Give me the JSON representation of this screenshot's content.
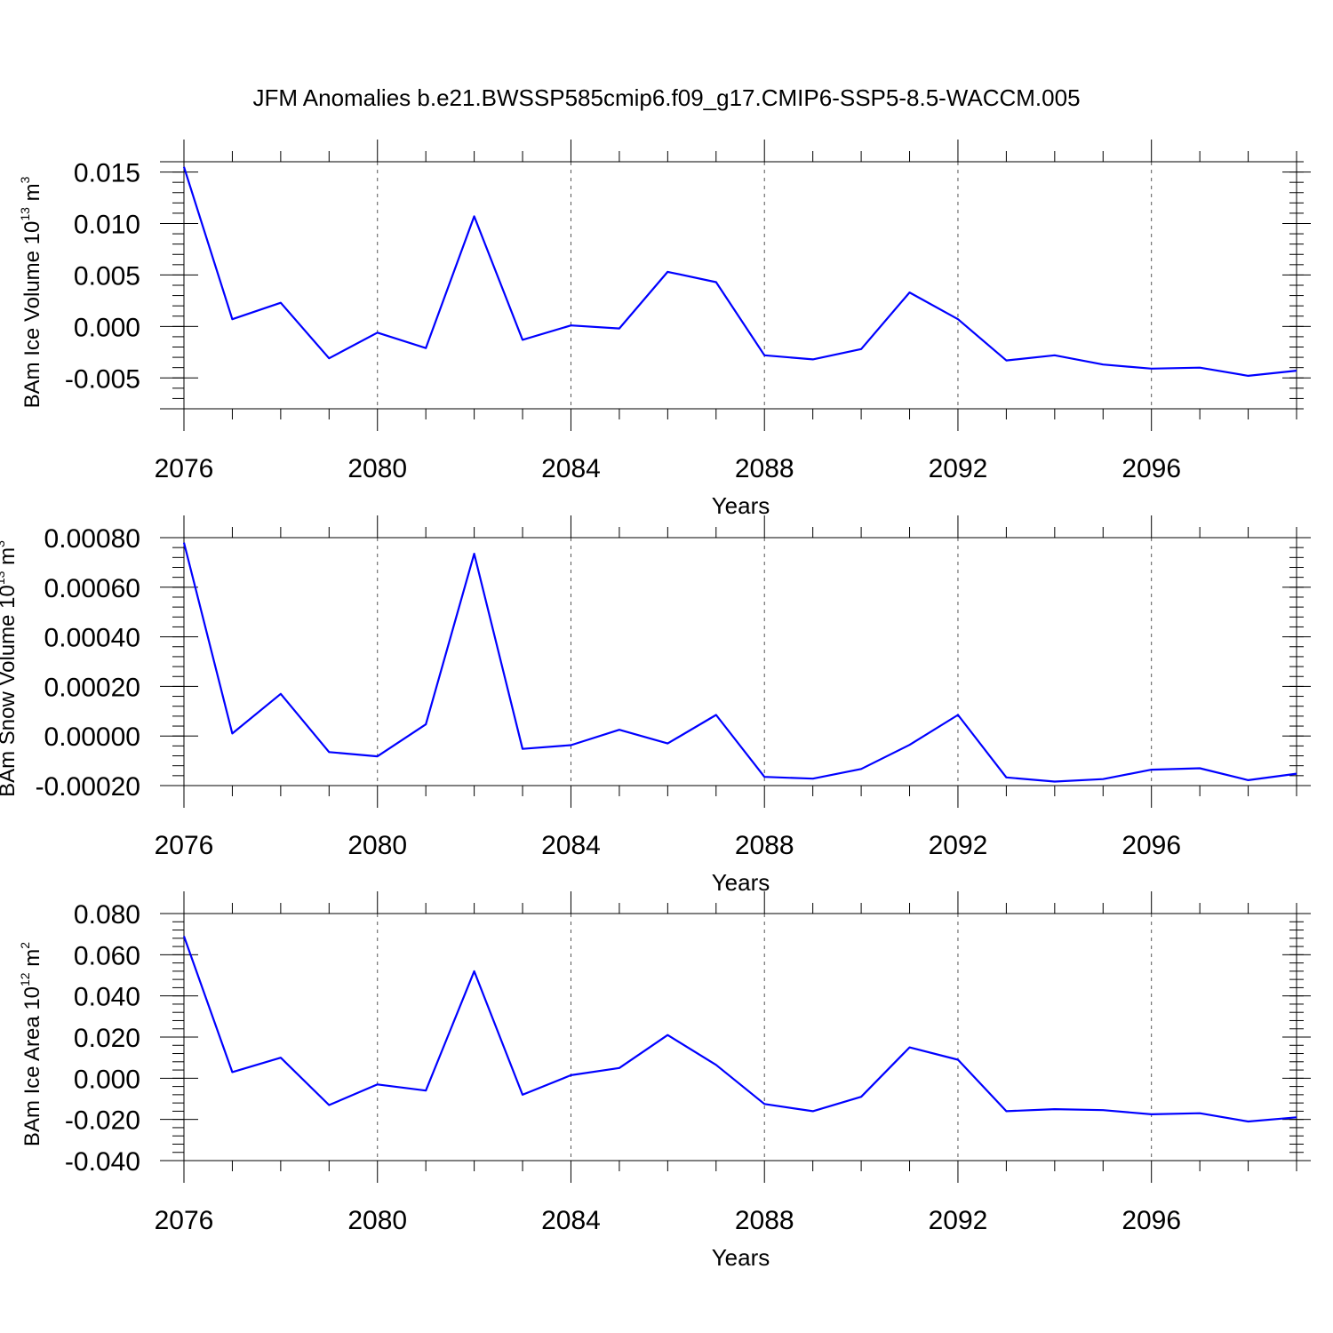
{
  "title": "JFM Anomalies b.e21.BWSSP585cmip6.f09_g17.CMIP6-SSP5-8.5-WACCM.005",
  "chart_data": [
    {
      "type": "line",
      "ylabel": {
        "main": "BAm Ice Volume 10",
        "sup": "13",
        "unit": " m",
        "unit_sup": "3"
      },
      "xlabel": "Years",
      "xlim": [
        2076,
        2099
      ],
      "ylim": [
        -0.008,
        0.016
      ],
      "yticks": [
        -0.005,
        0.0,
        0.005,
        0.01,
        0.015
      ],
      "ytick_labels": [
        "-0.005",
        "0.000",
        "0.005",
        "0.010",
        "0.015"
      ],
      "xticks": [
        2076,
        2080,
        2084,
        2088,
        2092,
        2096
      ],
      "xtick_labels": [
        "2076",
        "2080",
        "2084",
        "2088",
        "2092",
        "2096"
      ],
      "grid": "vertical dashed at major x ticks",
      "series": [
        {
          "color": "#0000ff",
          "x": [
            2076,
            2077,
            2078,
            2079,
            2080,
            2081,
            2082,
            2083,
            2084,
            2085,
            2086,
            2087,
            2088,
            2089,
            2090,
            2091,
            2092,
            2093,
            2094,
            2095,
            2096,
            2097,
            2098,
            2099
          ],
          "y": [
            0.0155,
            0.0007,
            0.0023,
            -0.0031,
            -0.0006,
            -0.0021,
            0.0107,
            -0.0013,
            0.0001,
            -0.0002,
            0.0053,
            0.0043,
            -0.0028,
            -0.0032,
            -0.0022,
            0.0033,
            0.0007,
            -0.0033,
            -0.0028,
            -0.0037,
            -0.0041,
            -0.004,
            -0.0048,
            -0.0043
          ]
        }
      ]
    },
    {
      "type": "line",
      "ylabel": {
        "main": "BAm Snow Volume 10",
        "sup": "13",
        "unit": " m",
        "unit_sup": "3"
      },
      "xlabel": "Years",
      "xlim": [
        2076,
        2099
      ],
      "ylim": [
        -0.0002,
        0.0008
      ],
      "yticks": [
        -0.0002,
        0.0,
        0.0002,
        0.0004,
        0.0006,
        0.0008
      ],
      "ytick_labels": [
        "-0.00020",
        "0.00000",
        "0.00020",
        "0.00040",
        "0.00060",
        "0.00080"
      ],
      "xticks": [
        2076,
        2080,
        2084,
        2088,
        2092,
        2096
      ],
      "xtick_labels": [
        "2076",
        "2080",
        "2084",
        "2088",
        "2092",
        "2096"
      ],
      "grid": "vertical dashed at major x ticks",
      "series": [
        {
          "color": "#0000ff",
          "x": [
            2076,
            2077,
            2078,
            2079,
            2080,
            2081,
            2082,
            2083,
            2084,
            2085,
            2086,
            2087,
            2088,
            2089,
            2090,
            2091,
            2092,
            2093,
            2094,
            2095,
            2096,
            2097,
            2098,
            2099
          ],
          "y": [
            0.00078,
            1e-05,
            0.00017,
            -6.5e-05,
            -8.2e-05,
            4.7e-05,
            0.000735,
            -5.2e-05,
            -3.7e-05,
            2.5e-05,
            -3e-05,
            8.5e-05,
            -0.000165,
            -0.000172,
            -0.000133,
            -3.6e-05,
            8.5e-05,
            -0.000167,
            -0.000184,
            -0.000174,
            -0.000136,
            -0.00013,
            -0.000178,
            -0.000152
          ]
        }
      ]
    },
    {
      "type": "line",
      "ylabel": {
        "main": "BAm Ice Area 10",
        "sup": "12",
        "unit": " m",
        "unit_sup": "2"
      },
      "xlabel": "Years",
      "xlim": [
        2076,
        2099
      ],
      "ylim": [
        -0.04,
        0.08
      ],
      "yticks": [
        -0.04,
        -0.02,
        0.0,
        0.02,
        0.04,
        0.06,
        0.08
      ],
      "ytick_labels": [
        "-0.040",
        "-0.020",
        "0.000",
        "0.020",
        "0.040",
        "0.060",
        "0.080"
      ],
      "xticks": [
        2076,
        2080,
        2084,
        2088,
        2092,
        2096
      ],
      "xtick_labels": [
        "2076",
        "2080",
        "2084",
        "2088",
        "2092",
        "2096"
      ],
      "grid": "vertical dashed at major x ticks",
      "series": [
        {
          "color": "#0000ff",
          "x": [
            2076,
            2077,
            2078,
            2079,
            2080,
            2081,
            2082,
            2083,
            2084,
            2085,
            2086,
            2087,
            2088,
            2089,
            2090,
            2091,
            2092,
            2093,
            2094,
            2095,
            2096,
            2097,
            2098,
            2099
          ],
          "y": [
            0.069,
            0.003,
            0.01,
            -0.013,
            -0.003,
            -0.006,
            0.052,
            -0.008,
            0.0015,
            0.005,
            0.021,
            0.0065,
            -0.0125,
            -0.016,
            -0.009,
            0.015,
            0.009,
            -0.016,
            -0.015,
            -0.0155,
            -0.0175,
            -0.017,
            -0.021,
            -0.019
          ]
        }
      ]
    }
  ]
}
